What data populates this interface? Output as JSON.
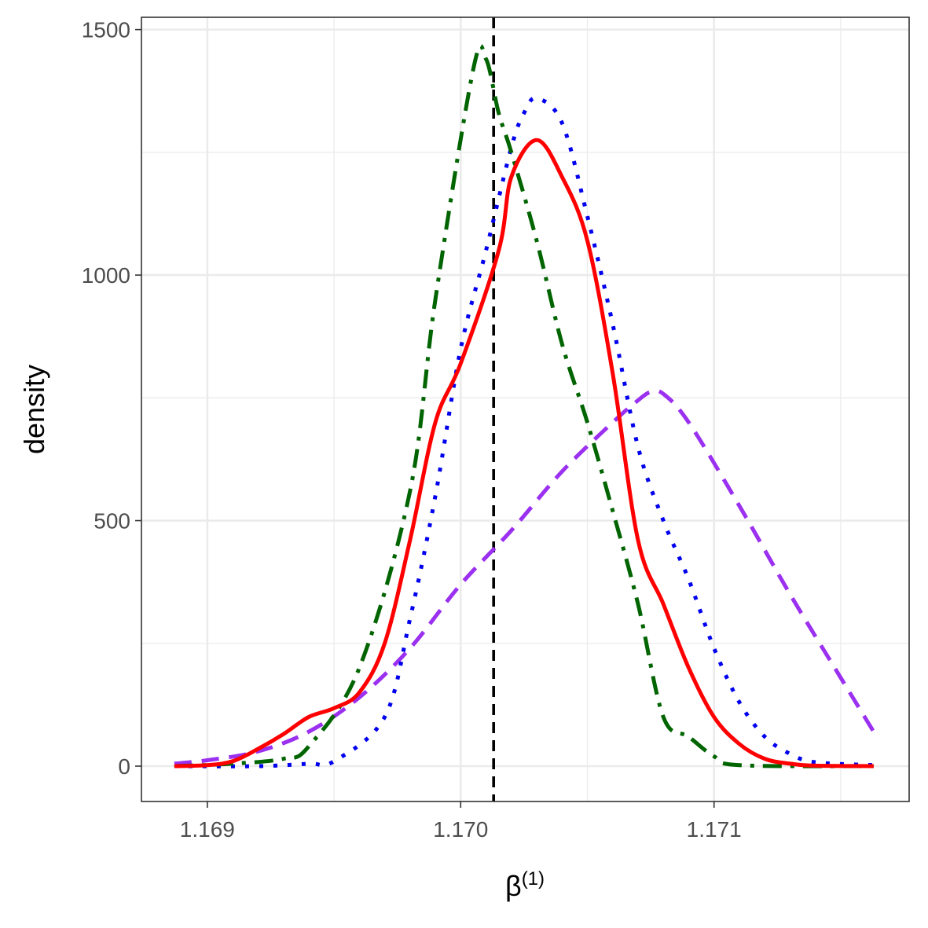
{
  "chart_data": {
    "type": "line",
    "xlabel": "β",
    "xlabel_superscript": "(1)",
    "ylabel": "density",
    "xlim": [
      1.16874,
      1.17177
    ],
    "ylim": [
      -72,
      1525
    ],
    "x_ticks": [
      {
        "value": 1.169,
        "label": "1.169"
      },
      {
        "value": 1.17,
        "label": "1.170"
      },
      {
        "value": 1.171,
        "label": "1.171"
      }
    ],
    "x_minor": [
      1.1695,
      1.1705,
      1.1715
    ],
    "y_ticks": [
      {
        "value": 0,
        "label": "0"
      },
      {
        "value": 500,
        "label": "500"
      },
      {
        "value": 1000,
        "label": "1000"
      },
      {
        "value": 1500,
        "label": "1500"
      }
    ],
    "y_minor": [
      250,
      750,
      1250
    ],
    "grid": true,
    "reference_line": {
      "x": 1.17013,
      "color": "#000000",
      "style": "dashed"
    },
    "series": [
      {
        "color": "#9b30f0",
        "style": "dashed",
        "points": [
          [
            1.16887,
            5
          ],
          [
            1.169,
            12
          ],
          [
            1.1692,
            30
          ],
          [
            1.1694,
            70
          ],
          [
            1.1696,
            140
          ],
          [
            1.1698,
            240
          ],
          [
            1.17,
            370
          ],
          [
            1.1702,
            480
          ],
          [
            1.1704,
            600
          ],
          [
            1.1706,
            700
          ],
          [
            1.1707,
            745
          ],
          [
            1.17075,
            762
          ],
          [
            1.1708,
            758
          ],
          [
            1.1709,
            700
          ],
          [
            1.1711,
            530
          ],
          [
            1.1713,
            350
          ],
          [
            1.1715,
            180
          ],
          [
            1.17163,
            70
          ]
        ]
      },
      {
        "color": "#0000ee",
        "style": "dotted",
        "points": [
          [
            1.16887,
            0
          ],
          [
            1.1692,
            0
          ],
          [
            1.1694,
            5
          ],
          [
            1.1695,
            10
          ],
          [
            1.1697,
            100
          ],
          [
            1.1698,
            300
          ],
          [
            1.1699,
            550
          ],
          [
            1.17,
            850
          ],
          [
            1.1701,
            1050
          ],
          [
            1.1702,
            1260
          ],
          [
            1.17025,
            1330
          ],
          [
            1.1703,
            1360
          ],
          [
            1.1704,
            1310
          ],
          [
            1.1705,
            1120
          ],
          [
            1.1706,
            900
          ],
          [
            1.1707,
            650
          ],
          [
            1.1708,
            500
          ],
          [
            1.1709,
            380
          ],
          [
            1.171,
            240
          ],
          [
            1.1711,
            130
          ],
          [
            1.1712,
            60
          ],
          [
            1.1713,
            25
          ],
          [
            1.1714,
            8
          ],
          [
            1.17163,
            2
          ]
        ]
      },
      {
        "color": "#006400",
        "style": "dashdot",
        "points": [
          [
            1.16887,
            0
          ],
          [
            1.1691,
            5
          ],
          [
            1.1693,
            15
          ],
          [
            1.1694,
            40
          ],
          [
            1.1696,
            200
          ],
          [
            1.1698,
            560
          ],
          [
            1.1699,
            950
          ],
          [
            1.17005,
            1420
          ],
          [
            1.1701,
            1440
          ],
          [
            1.17015,
            1330
          ],
          [
            1.1702,
            1250
          ],
          [
            1.1703,
            1070
          ],
          [
            1.1704,
            860
          ],
          [
            1.1705,
            700
          ],
          [
            1.1706,
            520
          ],
          [
            1.1707,
            330
          ],
          [
            1.1708,
            100
          ],
          [
            1.1709,
            60
          ],
          [
            1.171,
            20
          ],
          [
            1.1711,
            2
          ],
          [
            1.17163,
            0
          ]
        ]
      },
      {
        "color": "#ff0000",
        "style": "solid",
        "points": [
          [
            1.16887,
            0
          ],
          [
            1.169,
            2
          ],
          [
            1.1691,
            10
          ],
          [
            1.1692,
            35
          ],
          [
            1.1693,
            65
          ],
          [
            1.1694,
            100
          ],
          [
            1.1695,
            118
          ],
          [
            1.1696,
            150
          ],
          [
            1.1697,
            250
          ],
          [
            1.1698,
            460
          ],
          [
            1.1699,
            700
          ],
          [
            1.17,
            820
          ],
          [
            1.17015,
            1050
          ],
          [
            1.1702,
            1200
          ],
          [
            1.1703,
            1275
          ],
          [
            1.1704,
            1200
          ],
          [
            1.1705,
            1070
          ],
          [
            1.1706,
            800
          ],
          [
            1.1707,
            460
          ],
          [
            1.1708,
            330
          ],
          [
            1.1709,
            200
          ],
          [
            1.171,
            100
          ],
          [
            1.1711,
            45
          ],
          [
            1.1712,
            15
          ],
          [
            1.1713,
            5
          ],
          [
            1.1714,
            1
          ],
          [
            1.17163,
            0
          ]
        ]
      }
    ]
  }
}
